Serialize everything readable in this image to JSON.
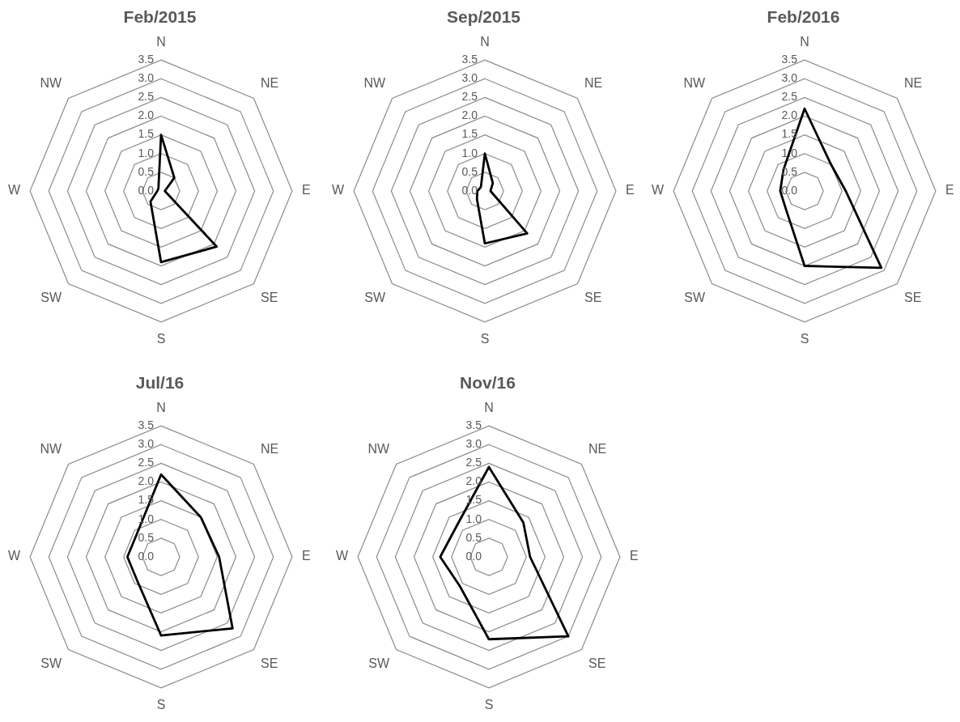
{
  "chart_data": [
    {
      "type": "radar",
      "title": "Feb/2015",
      "categories": [
        "N",
        "NE",
        "E",
        "SE",
        "S",
        "SW",
        "W",
        "NW"
      ],
      "series": [
        {
          "color": "#000000",
          "values": [
            1.5,
            0.5,
            0.1,
            2.1,
            1.9,
            0.4,
            0.1,
            0.1
          ]
        }
      ],
      "ylim": [
        0,
        3.5
      ],
      "yticks": [
        {
          "value": 0,
          "label": "0.0"
        },
        {
          "value": 0.5,
          "label": "0.5"
        },
        {
          "value": 1,
          "label": "1.0"
        },
        {
          "value": 1.5,
          "label": "1.5"
        },
        {
          "value": 2,
          "label": "2.0"
        },
        {
          "value": 2.5,
          "label": "2.5"
        },
        {
          "value": 3,
          "label": "3.0"
        },
        {
          "value": 3.5,
          "label": "3.5"
        }
      ],
      "grid": true,
      "legend": false,
      "marker": "none"
    },
    {
      "type": "radar",
      "title": "Sep/2015",
      "categories": [
        "N",
        "NE",
        "E",
        "SE",
        "S",
        "SW",
        "W",
        "NW"
      ],
      "series": [
        {
          "color": "#000000",
          "values": [
            1.0,
            0.3,
            0.15,
            1.6,
            1.4,
            0.3,
            0.2,
            0.15
          ]
        }
      ],
      "ylim": [
        0,
        3.5
      ],
      "yticks": [
        {
          "value": 0,
          "label": "0.0"
        },
        {
          "value": 0.5,
          "label": "0.5"
        },
        {
          "value": 1,
          "label": "1.0"
        },
        {
          "value": 1.5,
          "label": "1.5"
        },
        {
          "value": 2,
          "label": "2.0"
        },
        {
          "value": 2.5,
          "label": "2.5"
        },
        {
          "value": 3,
          "label": "3.0"
        },
        {
          "value": 3.5,
          "label": "3.5"
        }
      ],
      "grid": true,
      "legend": false,
      "marker": "none"
    },
    {
      "type": "radar",
      "title": "Feb/2016",
      "categories": [
        "N",
        "NE",
        "E",
        "SE",
        "S",
        "SW",
        "W",
        "NW"
      ],
      "series": [
        {
          "color": "#000000",
          "values": [
            2.2,
            1.0,
            1.1,
            2.9,
            2.0,
            0.7,
            0.65,
            0.8
          ]
        }
      ],
      "ylim": [
        0,
        3.5
      ],
      "yticks": [
        {
          "value": 0,
          "label": "0.0"
        },
        {
          "value": 0.5,
          "label": "0.5"
        },
        {
          "value": 1,
          "label": "1.0"
        },
        {
          "value": 1.5,
          "label": "1.5"
        },
        {
          "value": 2,
          "label": "2.0"
        },
        {
          "value": 2.5,
          "label": "2.5"
        },
        {
          "value": 3,
          "label": "3.0"
        },
        {
          "value": 3.5,
          "label": "3.5"
        }
      ],
      "grid": true,
      "legend": false,
      "marker": "none"
    },
    {
      "type": "radar",
      "title": "Jul/16",
      "categories": [
        "N",
        "NE",
        "E",
        "SE",
        "S",
        "SW",
        "W",
        "NW"
      ],
      "series": [
        {
          "color": "#000000",
          "values": [
            2.2,
            1.5,
            1.55,
            2.7,
            2.1,
            0.9,
            0.9,
            0.9
          ]
        }
      ],
      "ylim": [
        0,
        3.5
      ],
      "yticks": [
        {
          "value": 0,
          "label": "0.0"
        },
        {
          "value": 0.5,
          "label": "0.5"
        },
        {
          "value": 1,
          "label": "1.0"
        },
        {
          "value": 1.5,
          "label": "1.5"
        },
        {
          "value": 2,
          "label": "2.0"
        },
        {
          "value": 2.5,
          "label": "2.5"
        },
        {
          "value": 3,
          "label": "3.0"
        },
        {
          "value": 3.5,
          "label": "3.5"
        }
      ],
      "grid": true,
      "legend": false,
      "marker": "none"
    },
    {
      "type": "radar",
      "title": "Nov/16",
      "categories": [
        "N",
        "NE",
        "E",
        "SE",
        "S",
        "SW",
        "W",
        "NW"
      ],
      "series": [
        {
          "color": "#000000",
          "values": [
            2.4,
            1.3,
            1.1,
            3.0,
            2.2,
            1.1,
            1.3,
            1.2
          ]
        }
      ],
      "ylim": [
        0,
        3.5
      ],
      "yticks": [
        {
          "value": 0,
          "label": "0.0"
        },
        {
          "value": 0.5,
          "label": "0.5"
        },
        {
          "value": 1,
          "label": "1.0"
        },
        {
          "value": 1.5,
          "label": "1.5"
        },
        {
          "value": 2,
          "label": "2.0"
        },
        {
          "value": 2.5,
          "label": "2.5"
        },
        {
          "value": 3,
          "label": "3.0"
        },
        {
          "value": 3.5,
          "label": "3.5"
        }
      ],
      "grid": true,
      "legend": false,
      "marker": "none"
    }
  ]
}
